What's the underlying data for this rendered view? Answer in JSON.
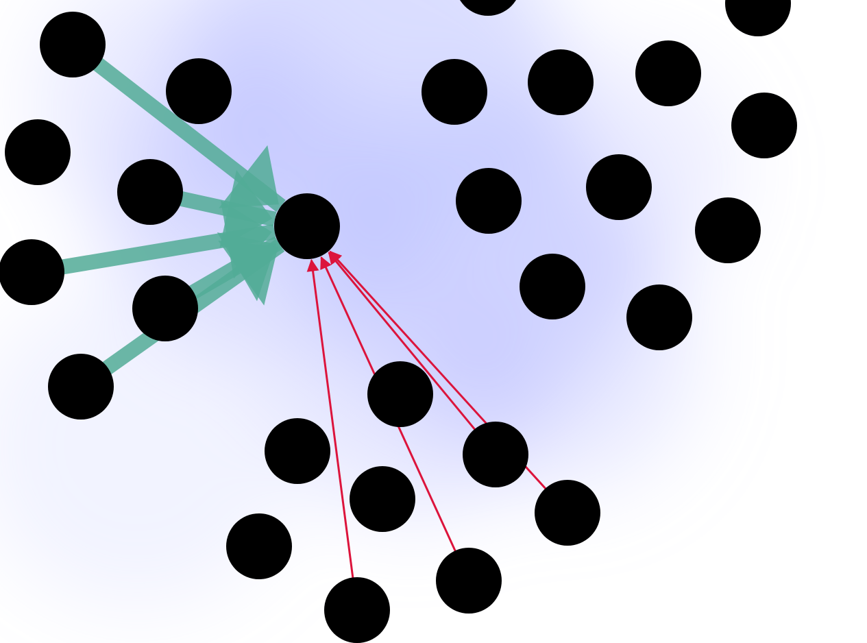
{
  "graph": {
    "background_color": "#ffffff",
    "halo_color": "#bcc1ff",
    "node_color": "#000000",
    "hub_node": "hub",
    "edge_groups": [
      {
        "name": "inbound-left",
        "color": "#52ab96",
        "style": "thick",
        "edges": [
          {
            "from": "n-top-left",
            "to": "hub"
          },
          {
            "from": "n-upper-left",
            "to": "hub"
          },
          {
            "from": "n-far-left",
            "to": "hub"
          },
          {
            "from": "n-mid-left",
            "to": "hub"
          },
          {
            "from": "n-lower-left",
            "to": "hub"
          }
        ]
      },
      {
        "name": "inbound-bottom",
        "color": "#dc143c",
        "style": "thin",
        "edges": [
          {
            "from": "n-bottom",
            "to": "hub"
          },
          {
            "from": "n-bottom-mid",
            "to": "hub"
          },
          {
            "from": "n-lower-mid",
            "to": "hub"
          },
          {
            "from": "n-lower-right",
            "to": "hub"
          }
        ]
      }
    ],
    "nodes": [
      {
        "id": "hub",
        "role": "hub"
      },
      {
        "id": "n-top-left"
      },
      {
        "id": "n-top-center-left"
      },
      {
        "id": "n-left-edge"
      },
      {
        "id": "n-upper-left"
      },
      {
        "id": "n-far-left"
      },
      {
        "id": "n-mid-left"
      },
      {
        "id": "n-lower-left"
      },
      {
        "id": "n-top-partial"
      },
      {
        "id": "n-top-right-partial"
      },
      {
        "id": "n-upper-center"
      },
      {
        "id": "n-upper-center-2"
      },
      {
        "id": "n-upper-right"
      },
      {
        "id": "n-right-edge"
      },
      {
        "id": "n-center"
      },
      {
        "id": "n-center-right"
      },
      {
        "id": "n-right"
      },
      {
        "id": "n-center-lower"
      },
      {
        "id": "n-lower-center-right"
      },
      {
        "id": "n-mid-lower"
      },
      {
        "id": "n-lower-left-cluster"
      },
      {
        "id": "n-lower-mid"
      },
      {
        "id": "n-lower-right"
      },
      {
        "id": "n-bottom-left"
      },
      {
        "id": "n-bottom-center"
      },
      {
        "id": "n-bottom"
      },
      {
        "id": "n-bottom-mid"
      }
    ]
  }
}
